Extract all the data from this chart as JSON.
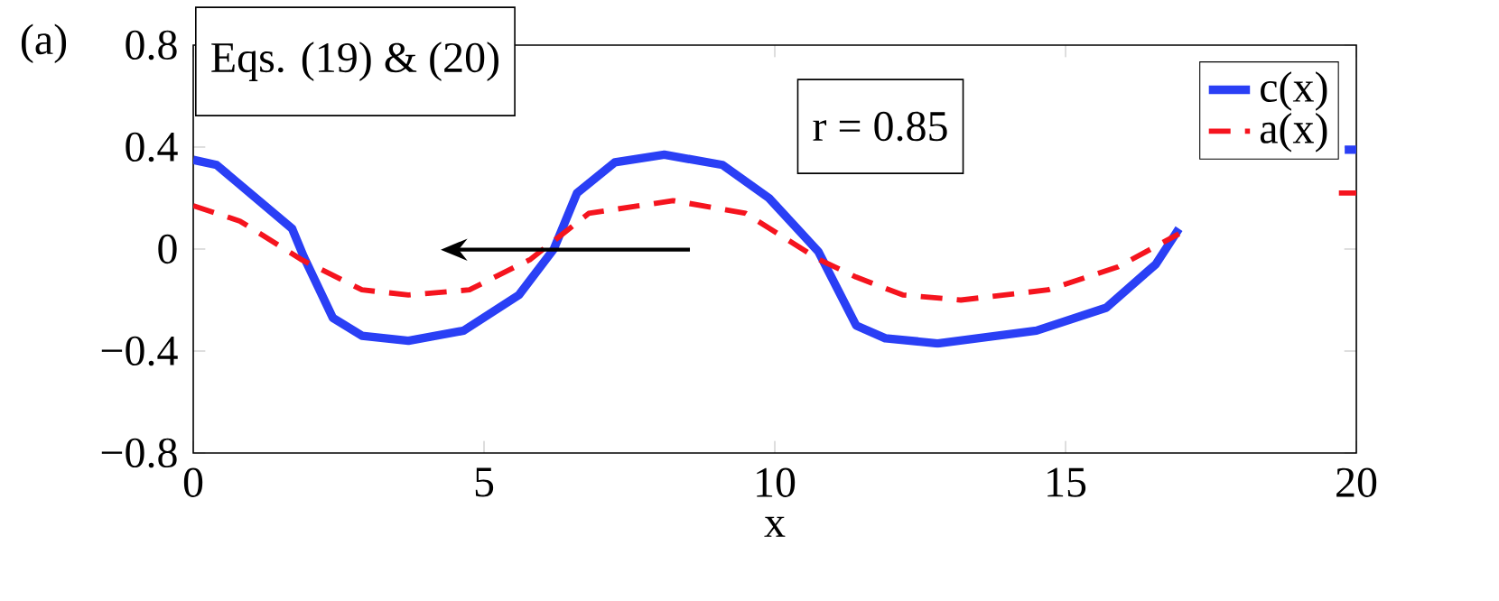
{
  "chart_data": {
    "type": "line",
    "xlabel": "x",
    "annotations": [
      "(a)",
      "Eqs. (19) & (20)",
      "r = 0.85"
    ],
    "xlim": [
      0,
      20
    ],
    "ylim": [
      -0.8,
      0.8
    ],
    "xticks": [
      0,
      5,
      10,
      15,
      20
    ],
    "yticks": [
      {
        "value": -0.8,
        "label": "−0.8"
      },
      {
        "value": -0.4,
        "label": "−0.4"
      },
      {
        "value": 0,
        "label": "0"
      },
      {
        "value": 0.4,
        "label": "0.4"
      },
      {
        "value": 0.8,
        "label": "0.8"
      }
    ],
    "legend": "top right",
    "grid": false,
    "series": [
      {
        "name": "c(x)",
        "color": "#2a3ff5",
        "line_style": "solid",
        "x": [
          0,
          0.4,
          1.7,
          1.9,
          2.4,
          2.9,
          3.7,
          4.65,
          5.6,
          6.2,
          6.6,
          7.25,
          8.1,
          9.1,
          9.9,
          10.75,
          11.4,
          11.9,
          12.8,
          14.5,
          15.7,
          16.55,
          16.95,
          18.4,
          19.8,
          20
        ],
        "values": [
          0.35,
          0.33,
          0.08,
          -0.03,
          -0.27,
          -0.34,
          -0.36,
          -0.32,
          -0.18,
          0.0,
          0.22,
          0.34,
          0.37,
          0.33,
          0.2,
          -0.01,
          -0.3,
          -0.35,
          -0.37,
          -0.32,
          -0.23,
          -0.06,
          0.08,
          null,
          0.39,
          0.39
        ]
      },
      {
        "name": "a(x)",
        "color": "#f5141e",
        "line_style": "dashed",
        "x": [
          0,
          0.8,
          1.85,
          2.9,
          3.7,
          4.75,
          5.8,
          6.8,
          8.25,
          9.5,
          10.75,
          11.4,
          12.2,
          13.2,
          14.7,
          15.9,
          16.95,
          18.4,
          19.7,
          20
        ],
        "values": [
          0.17,
          0.11,
          -0.04,
          -0.16,
          -0.18,
          -0.16,
          -0.04,
          0.14,
          0.19,
          0.14,
          -0.04,
          -0.11,
          -0.18,
          -0.2,
          -0.16,
          -0.07,
          0.06,
          null,
          0.22,
          0.22
        ]
      }
    ]
  }
}
